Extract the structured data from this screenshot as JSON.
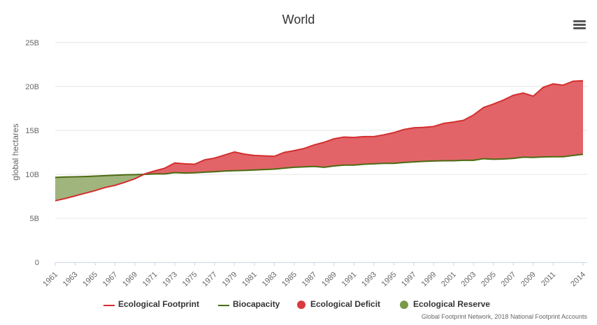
{
  "title": "World",
  "menu": {
    "icon": "hamburger-menu-icon"
  },
  "credits": "Global Footprint Network, 2018 National Footprint Accounts",
  "colors": {
    "footprint_line": "#d32f2f",
    "biocapacity_line": "#4b6b12",
    "deficit_fill": "#e05c60",
    "reserve_fill": "#8fa866",
    "deficit_legend": "#d93a3e",
    "reserve_legend": "#7a9a4a",
    "grid": "#e6e6e6",
    "axis_text": "#666666"
  },
  "legend": [
    {
      "label": "Ecological Footprint",
      "symbol": "line",
      "color": "#d32f2f"
    },
    {
      "label": "Biocapacity",
      "symbol": "line",
      "color": "#4b6b12"
    },
    {
      "label": "Ecological Deficit",
      "symbol": "dot",
      "color": "#d93a3e"
    },
    {
      "label": "Ecological Reserve",
      "symbol": "dot",
      "color": "#7a9a4a"
    }
  ],
  "chart_data": {
    "type": "area",
    "title": "World",
    "xlabel": "",
    "ylabel": "global hectares",
    "ylim": [
      0,
      25000000000
    ],
    "yticks": [
      0,
      5000000000,
      10000000000,
      15000000000,
      20000000000,
      25000000000
    ],
    "ytick_labels": [
      "0",
      "5B",
      "10B",
      "15B",
      "20B",
      "25B"
    ],
    "xticks": [
      1961,
      1963,
      1965,
      1967,
      1969,
      1971,
      1973,
      1975,
      1977,
      1979,
      1981,
      1983,
      1985,
      1987,
      1989,
      1991,
      1993,
      1995,
      1997,
      1999,
      2001,
      2003,
      2005,
      2007,
      2009,
      2011,
      2014
    ],
    "grid": true,
    "legend_position": "bottom",
    "x": [
      1961,
      1962,
      1963,
      1964,
      1965,
      1966,
      1967,
      1968,
      1969,
      1970,
      1971,
      1972,
      1973,
      1974,
      1975,
      1976,
      1977,
      1978,
      1979,
      1980,
      1981,
      1982,
      1983,
      1984,
      1985,
      1986,
      1987,
      1988,
      1989,
      1990,
      1991,
      1992,
      1993,
      1994,
      1995,
      1996,
      1997,
      1998,
      1999,
      2000,
      2001,
      2002,
      2003,
      2004,
      2005,
      2006,
      2007,
      2008,
      2009,
      2010,
      2011,
      2012,
      2013,
      2014
    ],
    "series": [
      {
        "name": "Ecological Footprint",
        "values": [
          7.0,
          7.25,
          7.55,
          7.85,
          8.15,
          8.5,
          8.75,
          9.1,
          9.5,
          10.05,
          10.4,
          10.7,
          11.3,
          11.2,
          11.15,
          11.65,
          11.85,
          12.2,
          12.55,
          12.3,
          12.15,
          12.1,
          12.05,
          12.5,
          12.7,
          12.95,
          13.35,
          13.65,
          14.05,
          14.25,
          14.2,
          14.3,
          14.3,
          14.5,
          14.75,
          15.1,
          15.3,
          15.35,
          15.45,
          15.8,
          15.95,
          16.15,
          16.75,
          17.6,
          18.0,
          18.45,
          19.0,
          19.25,
          18.9,
          19.9,
          20.3,
          20.15,
          20.6,
          20.65
        ]
      },
      {
        "name": "Biocapacity",
        "values": [
          9.65,
          9.7,
          9.72,
          9.75,
          9.8,
          9.85,
          9.9,
          9.95,
          9.97,
          10.0,
          10.05,
          10.05,
          10.2,
          10.15,
          10.18,
          10.25,
          10.3,
          10.38,
          10.42,
          10.45,
          10.5,
          10.55,
          10.6,
          10.7,
          10.8,
          10.85,
          10.9,
          10.8,
          10.95,
          11.05,
          11.05,
          11.15,
          11.2,
          11.25,
          11.25,
          11.35,
          11.42,
          11.48,
          11.52,
          11.55,
          11.55,
          11.6,
          11.6,
          11.78,
          11.72,
          11.75,
          11.82,
          11.95,
          11.92,
          11.98,
          12.0,
          12.0,
          12.15,
          12.28
        ]
      }
    ],
    "value_unit": "billion global hectares"
  }
}
